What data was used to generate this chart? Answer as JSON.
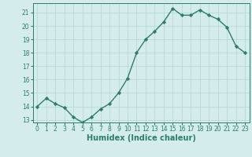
{
  "x": [
    0,
    1,
    2,
    3,
    4,
    5,
    6,
    7,
    8,
    9,
    10,
    11,
    12,
    13,
    14,
    15,
    16,
    17,
    18,
    19,
    20,
    21,
    22,
    23
  ],
  "y": [
    14.0,
    14.6,
    14.2,
    13.9,
    13.2,
    12.8,
    13.2,
    13.8,
    14.2,
    15.0,
    16.1,
    18.0,
    19.0,
    19.6,
    20.3,
    21.3,
    20.8,
    20.8,
    21.2,
    20.8,
    20.5,
    19.9,
    18.5,
    18.0
  ],
  "line_color": "#2d7d6f",
  "marker": "D",
  "marker_size": 2.2,
  "bg_color": "#d4ecec",
  "grid_color": "#b8d8d8",
  "xlabel": "Humidex (Indice chaleur)",
  "ylim": [
    12.8,
    21.7
  ],
  "xlim": [
    -0.5,
    23.5
  ],
  "yticks": [
    13,
    14,
    15,
    16,
    17,
    18,
    19,
    20,
    21
  ],
  "xticks": [
    0,
    1,
    2,
    3,
    4,
    5,
    6,
    7,
    8,
    9,
    10,
    11,
    12,
    13,
    14,
    15,
    16,
    17,
    18,
    19,
    20,
    21,
    22,
    23
  ],
  "tick_fontsize": 5.5,
  "xlabel_fontsize": 7,
  "line_width": 1.0,
  "tick_color": "#2d7d6f",
  "spine_color": "#2d7d6f"
}
